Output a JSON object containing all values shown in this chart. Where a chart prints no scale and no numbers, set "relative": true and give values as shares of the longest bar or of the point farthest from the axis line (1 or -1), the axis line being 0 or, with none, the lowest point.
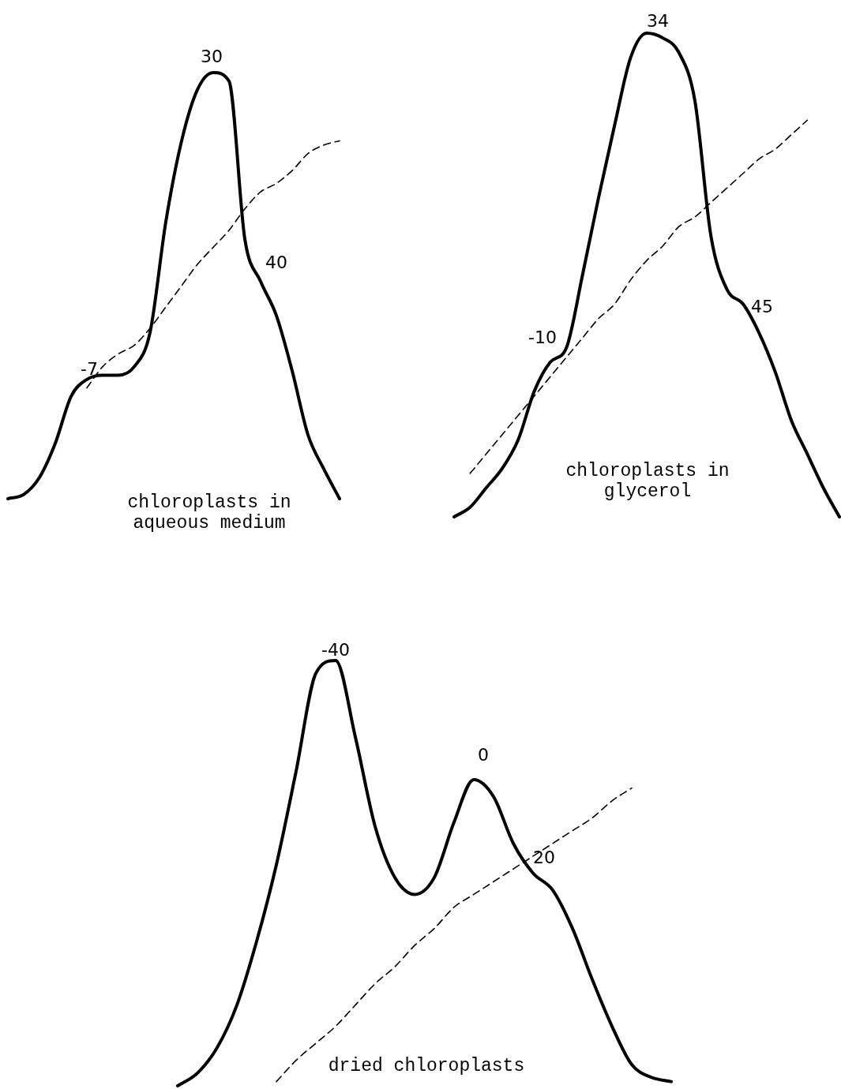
{
  "chart_data": [
    {
      "type": "line",
      "relative": true,
      "categories": [
        null,
        null,
        null,
        null,
        null,
        null,
        null,
        null,
        null,
        null,
        null,
        null,
        null,
        null,
        null,
        null,
        null,
        null,
        null,
        null,
        null,
        null
      ],
      "series": [
        {
          "color": "#000000",
          "line_style": "solid",
          "values": [
            0,
            0.01,
            0.05,
            0.13,
            0.24,
            0.28,
            0.29,
            0.29,
            0.31,
            0.39,
            0.65,
            0.84,
            0.96,
            1,
            0.98,
            0.61,
            0.51,
            0.43,
            0.3,
            0.15,
            0.07,
            0
          ]
        },
        {
          "color": "#000000",
          "line_style": "dashed",
          "values": [
            null,
            null,
            null,
            null,
            null,
            0.26,
            0.31,
            0.34,
            0.36,
            0.4,
            0.45,
            0.5,
            0.55,
            0.59,
            0.63,
            0.68,
            0.72,
            0.74,
            0.77,
            0.81,
            0.83,
            0.84
          ]
        }
      ],
      "annotations": [
        "-7",
        "30",
        "40",
        "chloroplasts in aqueous medium"
      ]
    },
    {
      "type": "line",
      "relative": true,
      "categories": [
        null,
        null,
        null,
        null,
        null,
        null,
        null,
        null,
        null,
        null,
        null,
        null,
        null,
        null,
        null,
        null,
        null,
        null,
        null,
        null,
        null,
        null,
        null,
        null,
        null
      ],
      "series": [
        {
          "color": "#000000",
          "line_style": "solid",
          "values": [
            0,
            0.02,
            0.06,
            0.1,
            0.16,
            0.26,
            0.32,
            0.35,
            0.5,
            0.66,
            0.81,
            0.95,
            1,
            0.99,
            0.96,
            0.86,
            0.58,
            0.47,
            0.44,
            0.38,
            0.3,
            0.2,
            0.13,
            0.06,
            0
          ]
        },
        {
          "color": "#000000",
          "line_style": "dashed",
          "values": [
            null,
            0.09,
            0.13,
            0.17,
            0.21,
            0.25,
            0.29,
            0.33,
            0.37,
            0.41,
            0.44,
            0.49,
            0.53,
            0.56,
            0.6,
            0.62,
            0.65,
            0.68,
            0.71,
            0.74,
            0.76,
            0.79,
            0.82,
            null,
            null
          ]
        }
      ],
      "annotations": [
        "-10",
        "34",
        "45",
        "chloroplasts in glycerol"
      ]
    },
    {
      "type": "line",
      "relative": true,
      "categories": [
        null,
        null,
        null,
        null,
        null,
        null,
        null,
        null,
        null,
        null,
        null,
        null,
        null,
        null,
        null,
        null,
        null,
        null,
        null,
        null,
        null,
        null,
        null,
        null,
        null,
        null
      ],
      "series": [
        {
          "color": "#000000",
          "line_style": "solid",
          "values": [
            0,
            0.03,
            0.09,
            0.19,
            0.34,
            0.52,
            0.74,
            0.97,
            1,
            0.82,
            0.61,
            0.49,
            0.45,
            0.49,
            0.62,
            0.72,
            0.68,
            0.57,
            0.5,
            0.46,
            0.37,
            0.25,
            0.14,
            0.05,
            0.02,
            0.01
          ]
        },
        {
          "color": "#000000",
          "line_style": "dashed",
          "values": [
            null,
            null,
            null,
            null,
            null,
            0.01,
            0.06,
            0.1,
            0.14,
            0.19,
            0.24,
            0.28,
            0.33,
            0.37,
            0.42,
            0.45,
            0.48,
            0.51,
            0.54,
            0.57,
            0.6,
            0.63,
            0.67,
            0.7,
            null,
            null
          ]
        }
      ],
      "annotations": [
        "-40",
        "0",
        "20",
        "dried chloroplasts"
      ]
    }
  ]
}
